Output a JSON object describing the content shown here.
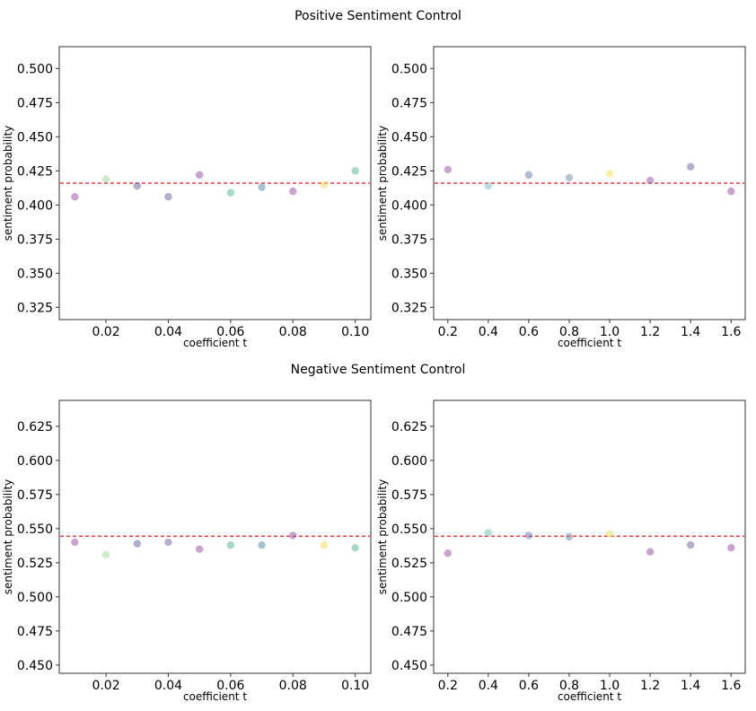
{
  "figure": {
    "section_titles": [
      "Positive Sentiment Control",
      "Negative Sentiment Control"
    ]
  },
  "chart_data": [
    {
      "type": "scatter",
      "group": "Positive Sentiment Control",
      "xlabel": "coefficient t",
      "ylabel": "sentiment probability",
      "xlim": [
        0.005,
        0.105
      ],
      "ylim": [
        0.316,
        0.516
      ],
      "xticks": [
        "0.02",
        "0.04",
        "0.06",
        "0.08",
        "0.10"
      ],
      "yticks": [
        "0.325",
        "0.350",
        "0.375",
        "0.400",
        "0.425",
        "0.450",
        "0.475",
        "0.500"
      ],
      "baseline": 0.416,
      "baseline_color": "#e31a1c",
      "points": [
        {
          "x": 0.01,
          "y": 0.406,
          "color": "#9b59a8"
        },
        {
          "x": 0.02,
          "y": 0.419,
          "color": "#a8d8a0"
        },
        {
          "x": 0.03,
          "y": 0.414,
          "color": "#6c6fa3"
        },
        {
          "x": 0.04,
          "y": 0.406,
          "color": "#7b6aa8"
        },
        {
          "x": 0.05,
          "y": 0.422,
          "color": "#9b59a8"
        },
        {
          "x": 0.06,
          "y": 0.409,
          "color": "#5fb7a0"
        },
        {
          "x": 0.07,
          "y": 0.413,
          "color": "#5b8fb0"
        },
        {
          "x": 0.08,
          "y": 0.41,
          "color": "#9b59a8"
        },
        {
          "x": 0.09,
          "y": 0.415,
          "color": "#f6e05e"
        },
        {
          "x": 0.1,
          "y": 0.425,
          "color": "#5fb7a0"
        }
      ]
    },
    {
      "type": "scatter",
      "group": "Positive Sentiment Control",
      "xlabel": "coefficient t",
      "ylabel": "sentiment probability",
      "xlim": [
        0.13,
        1.67
      ],
      "ylim": [
        0.316,
        0.516
      ],
      "xticks": [
        "0.2",
        "0.4",
        "0.6",
        "0.8",
        "1.0",
        "1.2",
        "1.4",
        "1.6"
      ],
      "yticks": [
        "0.325",
        "0.350",
        "0.375",
        "0.400",
        "0.425",
        "0.450",
        "0.475",
        "0.500"
      ],
      "baseline": 0.416,
      "baseline_color": "#e31a1c",
      "points": [
        {
          "x": 0.2,
          "y": 0.426,
          "color": "#9b59a8"
        },
        {
          "x": 0.4,
          "y": 0.414,
          "color": "#7fc4c0"
        },
        {
          "x": 0.6,
          "y": 0.422,
          "color": "#6c80b0"
        },
        {
          "x": 0.8,
          "y": 0.42,
          "color": "#7a94a8"
        },
        {
          "x": 1.0,
          "y": 0.423,
          "color": "#f6e05e"
        },
        {
          "x": 1.2,
          "y": 0.418,
          "color": "#9b59a8"
        },
        {
          "x": 1.4,
          "y": 0.428,
          "color": "#7b6aa8"
        },
        {
          "x": 1.6,
          "y": 0.41,
          "color": "#9b59a8"
        }
      ]
    },
    {
      "type": "scatter",
      "group": "Negative Sentiment Control",
      "xlabel": "coefficient t",
      "ylabel": "sentiment probability",
      "xlim": [
        0.005,
        0.105
      ],
      "ylim": [
        0.444,
        0.644
      ],
      "xticks": [
        "0.02",
        "0.04",
        "0.06",
        "0.08",
        "0.10"
      ],
      "yticks": [
        "0.450",
        "0.475",
        "0.500",
        "0.525",
        "0.550",
        "0.575",
        "0.600",
        "0.625"
      ],
      "baseline": 0.5445,
      "baseline_color": "#e31a1c",
      "points": [
        {
          "x": 0.01,
          "y": 0.54,
          "color": "#9b59a8"
        },
        {
          "x": 0.02,
          "y": 0.531,
          "color": "#a8d8a0"
        },
        {
          "x": 0.03,
          "y": 0.539,
          "color": "#6c6fa3"
        },
        {
          "x": 0.04,
          "y": 0.54,
          "color": "#7b6aa8"
        },
        {
          "x": 0.05,
          "y": 0.535,
          "color": "#9b59a8"
        },
        {
          "x": 0.06,
          "y": 0.538,
          "color": "#5fb7a0"
        },
        {
          "x": 0.07,
          "y": 0.538,
          "color": "#5b8fb0"
        },
        {
          "x": 0.08,
          "y": 0.545,
          "color": "#9b59a8"
        },
        {
          "x": 0.09,
          "y": 0.538,
          "color": "#f6e05e"
        },
        {
          "x": 0.1,
          "y": 0.536,
          "color": "#5fb7a0"
        }
      ]
    },
    {
      "type": "scatter",
      "group": "Negative Sentiment Control",
      "xlabel": "coefficient t",
      "ylabel": "sentiment probability",
      "xlim": [
        0.13,
        1.67
      ],
      "ylim": [
        0.444,
        0.644
      ],
      "xticks": [
        "0.2",
        "0.4",
        "0.6",
        "0.8",
        "1.0",
        "1.2",
        "1.4",
        "1.6"
      ],
      "yticks": [
        "0.450",
        "0.475",
        "0.500",
        "0.525",
        "0.550",
        "0.575",
        "0.600",
        "0.625"
      ],
      "baseline": 0.5445,
      "baseline_color": "#e31a1c",
      "points": [
        {
          "x": 0.2,
          "y": 0.532,
          "color": "#9b59a8"
        },
        {
          "x": 0.4,
          "y": 0.547,
          "color": "#7fc4c0"
        },
        {
          "x": 0.6,
          "y": 0.545,
          "color": "#6c80b0"
        },
        {
          "x": 0.8,
          "y": 0.544,
          "color": "#7a94a8"
        },
        {
          "x": 1.0,
          "y": 0.546,
          "color": "#f6e05e"
        },
        {
          "x": 1.2,
          "y": 0.533,
          "color": "#9b59a8"
        },
        {
          "x": 1.4,
          "y": 0.538,
          "color": "#7b6aa8"
        },
        {
          "x": 1.6,
          "y": 0.536,
          "color": "#9b59a8"
        }
      ]
    }
  ]
}
